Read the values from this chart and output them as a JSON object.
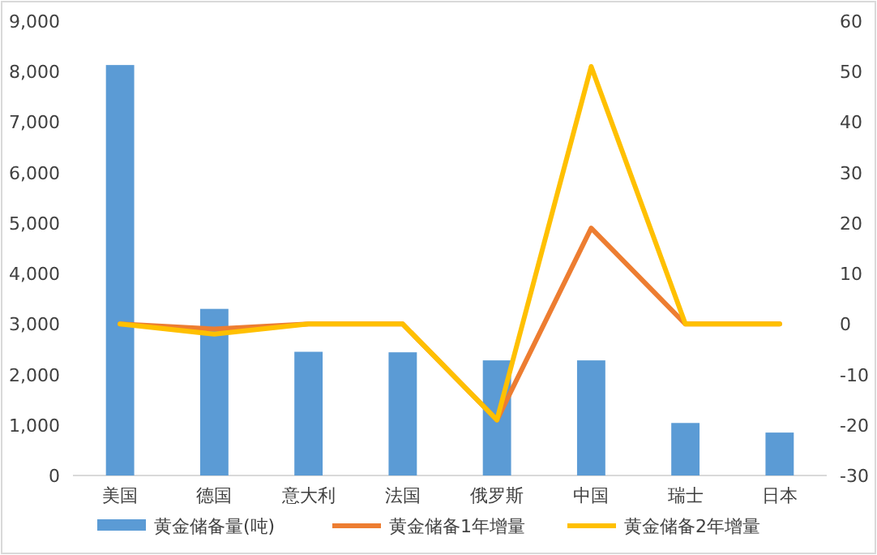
{
  "chart_data": {
    "type": "bar",
    "categories": [
      "美国",
      "德国",
      "意大利",
      "法国",
      "俄罗斯",
      "中国",
      "瑞士",
      "日本"
    ],
    "series": [
      {
        "name": "黄金储备量(吨)",
        "color": "#5b9bd5",
        "values": [
          8130,
          3300,
          2450,
          2440,
          2280,
          2280,
          1040,
          850
        ]
      },
      {
        "name": "黄金储备1年增量",
        "type": "line",
        "axis": "y2",
        "color": "#ed7d31",
        "values": [
          0,
          -1,
          0,
          0,
          -19,
          19,
          0,
          0
        ]
      },
      {
        "name": "黄金储备2年增量",
        "type": "line",
        "axis": "y2",
        "color": "#ffc000",
        "values": [
          0,
          -2,
          0,
          0,
          -19,
          51,
          0,
          0
        ]
      }
    ],
    "ylim": [
      0,
      9000
    ],
    "yticks": [
      {
        "value": 0,
        "label": "0"
      },
      {
        "value": 1000,
        "label": "1,000"
      },
      {
        "value": 2000,
        "label": "2,000"
      },
      {
        "value": 3000,
        "label": "3,000"
      },
      {
        "value": 4000,
        "label": "4,000"
      },
      {
        "value": 5000,
        "label": "5,000"
      },
      {
        "value": 6000,
        "label": "6,000"
      },
      {
        "value": 7000,
        "label": "7,000"
      },
      {
        "value": 8000,
        "label": "8,000"
      },
      {
        "value": 9000,
        "label": "9,000"
      }
    ],
    "y2lim": [
      -30,
      60
    ],
    "y2ticks": [
      -30,
      -20,
      -10,
      0,
      10,
      20,
      30,
      40,
      50,
      60
    ],
    "grid": false,
    "legend": "bottom",
    "line_style": "solid"
  }
}
